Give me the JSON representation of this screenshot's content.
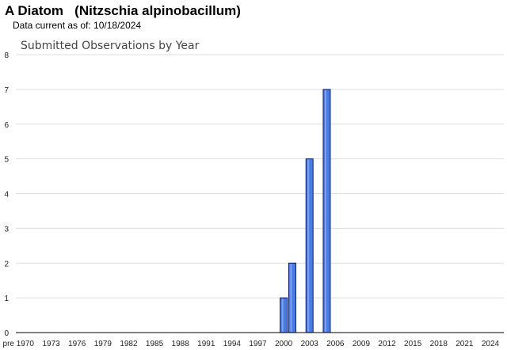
{
  "header": {
    "title": "A Diatom   (Nitzschia alpinobacillum)",
    "subtitle": "Data current as of: 10/18/2024"
  },
  "colors": {
    "bar_fill": "#4a7be0",
    "bar_stroke": "#0d1f6e",
    "grid": "#dddddd",
    "axis": "#000000"
  },
  "chart_data": {
    "type": "bar",
    "title": "Submitted Observations by Year",
    "xlabel": "",
    "ylabel": "",
    "ylim": [
      0,
      8
    ],
    "yticks": [
      0,
      1,
      2,
      3,
      4,
      5,
      6,
      7,
      8
    ],
    "grid": true,
    "x_tick_labels": [
      "pre 1970",
      "1973",
      "1976",
      "1979",
      "1982",
      "1985",
      "1988",
      "1991",
      "1994",
      "1997",
      "2000",
      "2003",
      "2006",
      "2009",
      "2012",
      "2015",
      "2018",
      "2021",
      "2024"
    ],
    "x_min_year": 1969,
    "x_max_year": 2025,
    "bars": [
      {
        "year": 2000,
        "value": 1
      },
      {
        "year": 2001,
        "value": 2
      },
      {
        "year": 2003,
        "value": 5
      },
      {
        "year": 2005,
        "value": 7
      }
    ]
  }
}
